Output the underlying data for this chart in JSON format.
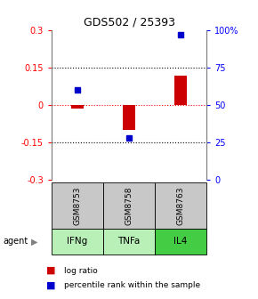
{
  "title": "GDS502 / 25393",
  "samples": [
    "GSM8753",
    "GSM8758",
    "GSM8763"
  ],
  "agents": [
    "IFNg",
    "TNFa",
    "IL4"
  ],
  "log_ratios": [
    -0.015,
    -0.1,
    0.115
  ],
  "percentile_ranks": [
    60,
    28,
    97
  ],
  "ylim_left": [
    -0.3,
    0.3
  ],
  "ylim_right": [
    0,
    100
  ],
  "yticks_left": [
    -0.3,
    -0.15,
    0,
    0.15,
    0.3
  ],
  "yticks_right": [
    0,
    25,
    50,
    75,
    100
  ],
  "ytick_labels_left": [
    "-0.3",
    "-0.15",
    "0",
    "0.15",
    "0.3"
  ],
  "ytick_labels_right": [
    "0",
    "25",
    "50",
    "75",
    "100%"
  ],
  "bar_color": "#cc0000",
  "dot_color": "#0000cc",
  "agent_colors": [
    "#b8f0b8",
    "#b8f0b8",
    "#44cc44"
  ],
  "sample_bg_color": "#c8c8c8",
  "legend_bar_label": "log ratio",
  "legend_dot_label": "percentile rank within the sample"
}
